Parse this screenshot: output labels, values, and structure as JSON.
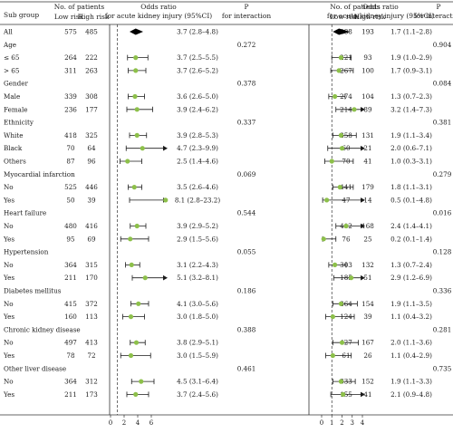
{
  "chart_data": {
    "type": "forest",
    "headers": {
      "subgroup": "Sub group",
      "patients": "No. of patients",
      "low_risk": "Low risk",
      "high_risk": "High risk",
      "or": "Odds ratio for acute kidney injury (95%CI)",
      "p": "P for interaction"
    },
    "panels": [
      {
        "ticks": [
          0,
          2,
          4,
          6
        ],
        "xlim": [
          0,
          8
        ],
        "ref": 1
      },
      {
        "ticks": [
          0,
          1,
          2,
          3,
          4
        ],
        "xlim": [
          0,
          4
        ],
        "ref": 1
      }
    ],
    "rows": [
      {
        "label": "All",
        "type": "overall",
        "p1": {
          "low": "575",
          "high": "485",
          "est": 3.7,
          "lo": 2.8,
          "hi": 4.8,
          "text": "3.7 (2.8–4.8)"
        },
        "p2": {
          "low": "488",
          "high": "193",
          "est": 1.7,
          "lo": 1.1,
          "hi": 2.8,
          "text": "1.7 (1.1–2.8)"
        }
      },
      {
        "label": "Age",
        "type": "group",
        "pint1": "0.272",
        "pint2": "0.904"
      },
      {
        "label": "≤ 65",
        "type": "sub",
        "p1": {
          "low": "264",
          "high": "222",
          "est": 3.7,
          "lo": 2.5,
          "hi": 5.5,
          "text": "3.7 (2.5–5.5)"
        },
        "p2": {
          "low": "221",
          "high": "93",
          "est": 1.9,
          "lo": 1.0,
          "hi": 2.9,
          "text": "1.9 (1.0–2.9)"
        }
      },
      {
        "label": "> 65",
        "type": "sub",
        "p1": {
          "low": "311",
          "high": "263",
          "est": 3.7,
          "lo": 2.6,
          "hi": 5.2,
          "text": "3.7 (2.6–5.2)"
        },
        "p2": {
          "low": "267",
          "high": "100",
          "est": 1.7,
          "lo": 0.9,
          "hi": 3.1,
          "text": "1.7 (0.9–3.1)"
        }
      },
      {
        "label": "Gender",
        "type": "group",
        "pint1": "0.378",
        "pint2": "0.084"
      },
      {
        "label": "Male",
        "type": "sub",
        "p1": {
          "low": "339",
          "high": "308",
          "est": 3.6,
          "lo": 2.6,
          "hi": 5.0,
          "text": "3.6 (2.6–5.0)"
        },
        "p2": {
          "low": "274",
          "high": "104",
          "est": 1.3,
          "lo": 0.7,
          "hi": 2.3,
          "text": "1.3 (0.7–2.3)"
        }
      },
      {
        "label": "Female",
        "type": "sub",
        "p1": {
          "low": "236",
          "high": "177",
          "est": 3.9,
          "lo": 2.4,
          "hi": 6.2,
          "text": "3.9 (2.4–6.2)"
        },
        "p2": {
          "low": "214",
          "high": "89",
          "est": 3.2,
          "lo": 1.4,
          "hi": 7.3,
          "text": "3.2 (1.4–7.3)"
        }
      },
      {
        "label": "Ethnicity",
        "type": "group",
        "pint1": "0.337",
        "pint2": "0.381"
      },
      {
        "label": "White",
        "type": "sub",
        "p1": {
          "low": "418",
          "high": "325",
          "est": 3.9,
          "lo": 2.8,
          "hi": 5.3,
          "text": "3.9 (2.8–5.3)"
        },
        "p2": {
          "low": "358",
          "high": "131",
          "est": 1.9,
          "lo": 1.1,
          "hi": 3.4,
          "text": "1.9 (1.1–3.4)"
        }
      },
      {
        "label": "Black",
        "type": "sub",
        "p1": {
          "low": "70",
          "high": "64",
          "est": 4.7,
          "lo": 2.3,
          "hi": 9.9,
          "text": "4.7 (2.3–9.9)"
        },
        "p2": {
          "low": "60",
          "high": "21",
          "est": 2.0,
          "lo": 0.6,
          "hi": 7.1,
          "text": "2.0 (0.6–7.1)"
        }
      },
      {
        "label": "Others",
        "type": "sub",
        "p1": {
          "low": "87",
          "high": "96",
          "est": 2.5,
          "lo": 1.4,
          "hi": 4.6,
          "text": "2.5 (1.4–4.6)"
        },
        "p2": {
          "low": "70",
          "high": "41",
          "est": 1.0,
          "lo": 0.3,
          "hi": 3.1,
          "text": "1.0 (0.3–3.1)"
        }
      },
      {
        "label": "Myocardial infarction",
        "type": "group",
        "pint1": "0.069",
        "pint2": "0.279"
      },
      {
        "label": "No",
        "type": "sub",
        "p1": {
          "low": "525",
          "high": "446",
          "est": 3.5,
          "lo": 2.6,
          "hi": 4.6,
          "text": "3.5 (2.6–4.6)"
        },
        "p2": {
          "low": "441",
          "high": "179",
          "est": 1.8,
          "lo": 1.1,
          "hi": 3.1,
          "text": "1.8 (1.1–3.1)"
        }
      },
      {
        "label": "Yes",
        "type": "sub",
        "p1": {
          "low": "50",
          "high": "39",
          "est": 8.1,
          "lo": 2.8,
          "hi": 23.2,
          "text": "8.1 (2.8–23.2)"
        },
        "p2": {
          "low": "47",
          "high": "14",
          "est": 0.5,
          "lo": 0.1,
          "hi": 4.8,
          "text": "0.5 (0.1–4.8)"
        }
      },
      {
        "label": "Heart failure",
        "type": "group",
        "pint1": "0.544",
        "pint2": "0.016"
      },
      {
        "label": "No",
        "type": "sub",
        "p1": {
          "low": "480",
          "high": "416",
          "est": 3.9,
          "lo": 2.9,
          "hi": 5.2,
          "text": "3.9 (2.9–5.2)"
        },
        "p2": {
          "low": "412",
          "high": "168",
          "est": 2.4,
          "lo": 1.4,
          "hi": 4.1,
          "text": "2.4 (1.4–4.1)"
        }
      },
      {
        "label": "Yes",
        "type": "sub",
        "p1": {
          "low": "95",
          "high": "69",
          "est": 2.9,
          "lo": 1.5,
          "hi": 5.6,
          "text": "2.9 (1.5–5.6)"
        },
        "p2": {
          "low": "76",
          "high": "25",
          "est": 0.2,
          "lo": 0.1,
          "hi": 1.4,
          "text": "0.2 (0.1–1.4)"
        }
      },
      {
        "label": "Hypertension",
        "type": "group",
        "pint1": "0.055",
        "pint2": "0.128"
      },
      {
        "label": "No",
        "type": "sub",
        "p1": {
          "low": "364",
          "high": "315",
          "est": 3.1,
          "lo": 2.2,
          "hi": 4.3,
          "text": "3.1 (2.2–4.3)"
        },
        "p2": {
          "low": "303",
          "high": "132",
          "est": 1.3,
          "lo": 0.7,
          "hi": 2.4,
          "text": "1.3 (0.7–2.4)"
        }
      },
      {
        "label": "Yes",
        "type": "sub",
        "p1": {
          "low": "211",
          "high": "170",
          "est": 5.1,
          "lo": 3.2,
          "hi": 8.1,
          "text": "5.1 (3.2–8.1)"
        },
        "p2": {
          "low": "185",
          "high": "51",
          "est": 2.9,
          "lo": 1.2,
          "hi": 6.9,
          "text": "2.9 (1.2–6.9)"
        }
      },
      {
        "label": "Diabetes mellitus",
        "type": "group",
        "pint1": "0.186",
        "pint2": "0.336"
      },
      {
        "label": "No",
        "type": "sub",
        "p1": {
          "low": "415",
          "high": "372",
          "est": 4.1,
          "lo": 3.0,
          "hi": 5.6,
          "text": "4.1 (3.0–5.6)"
        },
        "p2": {
          "low": "364",
          "high": "154",
          "est": 1.9,
          "lo": 1.1,
          "hi": 3.5,
          "text": "1.9 (1.1–3.5)"
        }
      },
      {
        "label": "Yes",
        "type": "sub",
        "p1": {
          "low": "160",
          "high": "113",
          "est": 3.0,
          "lo": 1.8,
          "hi": 5.0,
          "text": "3.0 (1.8–5.0)"
        },
        "p2": {
          "low": "124",
          "high": "39",
          "est": 1.1,
          "lo": 0.4,
          "hi": 3.2,
          "text": "1.1 (0.4–3.2)"
        }
      },
      {
        "label": "Chronic kidney disease",
        "type": "group",
        "pint1": "0.388",
        "pint2": "0.281"
      },
      {
        "label": "No",
        "type": "sub",
        "p1": {
          "low": "497",
          "high": "413",
          "est": 3.8,
          "lo": 2.9,
          "hi": 5.1,
          "text": "3.8 (2.9–5.1)"
        },
        "p2": {
          "low": "427",
          "high": "167",
          "est": 2.0,
          "lo": 1.1,
          "hi": 3.6,
          "text": "2.0 (1.1–3.6)"
        }
      },
      {
        "label": "Yes",
        "type": "sub",
        "p1": {
          "low": "78",
          "high": "72",
          "est": 3.0,
          "lo": 1.5,
          "hi": 5.9,
          "text": "3.0 (1.5–5.9)"
        },
        "p2": {
          "low": "61",
          "high": "26",
          "est": 1.1,
          "lo": 0.4,
          "hi": 2.9,
          "text": "1.1 (0.4–2.9)"
        }
      },
      {
        "label": "Other liver disease",
        "type": "group",
        "pint1": "0.461",
        "pint2": "0.735"
      },
      {
        "label": "No",
        "type": "sub",
        "p1": {
          "low": "364",
          "high": "312",
          "est": 4.5,
          "lo": 3.1,
          "hi": 6.4,
          "text": "4.5 (3.1–6.4)"
        },
        "p2": {
          "low": "333",
          "high": "152",
          "est": 1.9,
          "lo": 1.1,
          "hi": 3.3,
          "text": "1.9 (1.1–3.3)"
        }
      },
      {
        "label": "Yes",
        "type": "sub",
        "p1": {
          "low": "211",
          "high": "173",
          "est": 3.7,
          "lo": 2.4,
          "hi": 5.6,
          "text": "3.7 (2.4–5.6)"
        },
        "p2": {
          "low": "155",
          "high": "41",
          "est": 2.1,
          "lo": 0.9,
          "hi": 4.8,
          "text": "2.1 (0.9–4.8)"
        }
      }
    ],
    "colors": {
      "point": "#8dc04a",
      "line": "#1a1a1a",
      "diamond": "#000000"
    }
  }
}
